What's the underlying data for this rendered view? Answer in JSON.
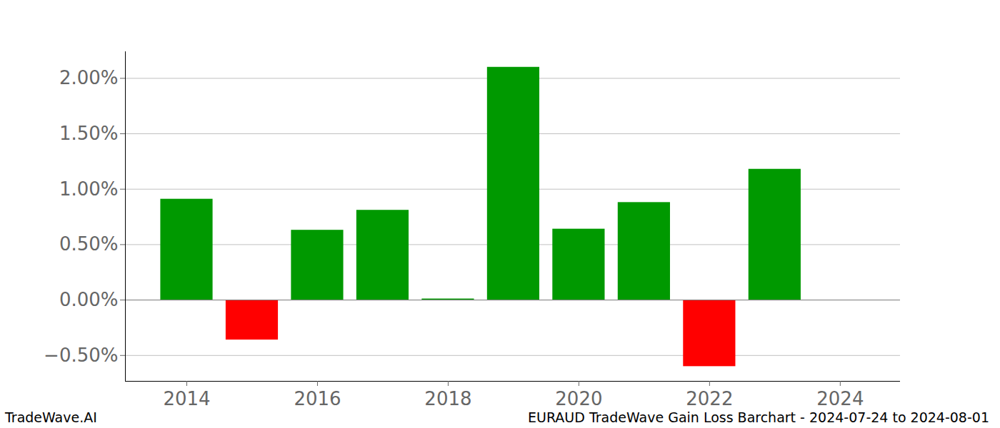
{
  "chart_data": {
    "type": "bar",
    "title": "EURAUD TradeWave Gain Loss Barchart - 2024-07-24 to 2024-08-01",
    "annotations": [
      "TradeWave.AI"
    ],
    "x": [
      2014,
      2015,
      2016,
      2017,
      2018,
      2019,
      2020,
      2021,
      2022,
      2023
    ],
    "values": [
      0.91,
      -0.36,
      0.63,
      0.81,
      0.01,
      2.1,
      0.64,
      0.88,
      -0.6,
      1.18
    ],
    "colors": [
      "#009900",
      "#ff0000",
      "#009900",
      "#009900",
      "#009900",
      "#009900",
      "#009900",
      "#009900",
      "#ff0000",
      "#009900"
    ],
    "xlim": [
      2013.06,
      2024.92
    ],
    "xticks": [
      2014,
      2016,
      2018,
      2020,
      2022,
      2024
    ],
    "ylim": [
      -0.733,
      2.24
    ],
    "yticks": [
      {
        "value": -0.5,
        "label": "−0.50%"
      },
      {
        "value": 0,
        "label": "0.00%"
      },
      {
        "value": 0.5,
        "label": "0.50%"
      },
      {
        "value": 1.0,
        "label": "1.00%"
      },
      {
        "value": 1.5,
        "label": "1.50%"
      },
      {
        "value": 2.0,
        "label": "2.00%"
      }
    ],
    "grid": true
  }
}
